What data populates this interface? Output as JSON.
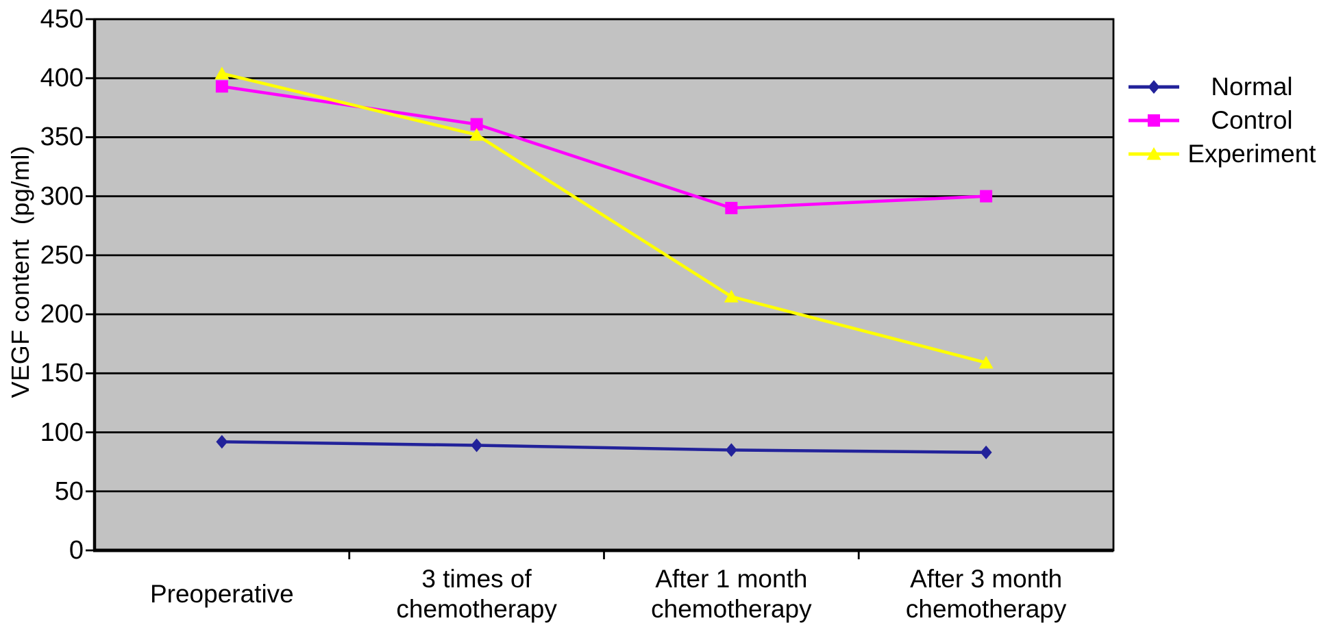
{
  "chart_data": {
    "type": "line",
    "title": "",
    "ylabel": "VEGF content  (pg/ml)",
    "xlabel": "",
    "categories": [
      "Preoperative",
      "3 times of\nchemotherapy",
      "After 1 month\nchemotherapy",
      "After 3 month\nchemotherapy"
    ],
    "series": [
      {
        "name": "Normal",
        "color": "#22229a",
        "marker": "diamond",
        "values": [
          92,
          89,
          85,
          83
        ]
      },
      {
        "name": "Control",
        "color": "#ff00ff",
        "marker": "square",
        "values": [
          393,
          361,
          290,
          300
        ]
      },
      {
        "name": "Experiment",
        "color": "#ffff00",
        "marker": "triangle",
        "values": [
          404,
          352,
          215,
          159
        ]
      }
    ],
    "ylim": [
      0,
      450
    ],
    "ytick_step": 50,
    "yticks": [
      450,
      400,
      350,
      300,
      250,
      200,
      150,
      100,
      50,
      0
    ],
    "grid": "horizontal-major",
    "plot_background": "#c2c2c2",
    "gridline_color": "#000000",
    "axis_color": "#000000",
    "legend_position": "right"
  }
}
